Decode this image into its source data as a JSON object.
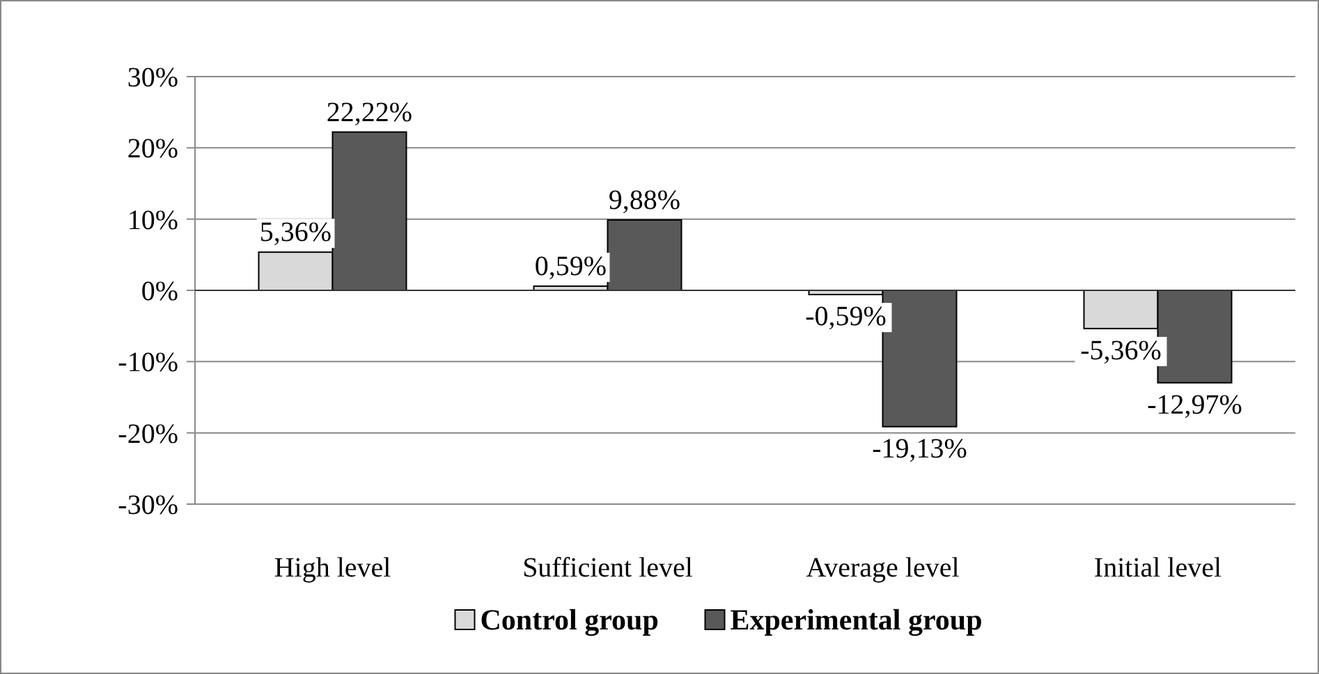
{
  "chart_data": {
    "type": "bar",
    "categories": [
      "High level",
      "Sufficient level",
      "Average level",
      "Initial level"
    ],
    "series": [
      {
        "name": "Control group",
        "color": "#d9d9d9",
        "values": [
          5.36,
          0.59,
          -0.59,
          -5.36
        ],
        "value_labels": [
          "5,36%",
          "0,59%",
          "-0,59%",
          "-5,36%"
        ]
      },
      {
        "name": "Experimental group",
        "color": "#595959",
        "values": [
          22.22,
          9.88,
          -19.13,
          -12.97
        ],
        "value_labels": [
          "22,22%",
          "9,88%",
          "-19,13%",
          "-12,97%"
        ]
      }
    ],
    "ylim": [
      -30,
      30
    ],
    "yticks": [
      {
        "value": -30,
        "label": "-30%"
      },
      {
        "value": -20,
        "label": "-20%"
      },
      {
        "value": -10,
        "label": "-10%"
      },
      {
        "value": 0,
        "label": "0%"
      },
      {
        "value": 10,
        "label": "10%"
      },
      {
        "value": 20,
        "label": "20%"
      },
      {
        "value": 30,
        "label": "30%"
      }
    ],
    "grid": "y",
    "legend": "bottom"
  }
}
